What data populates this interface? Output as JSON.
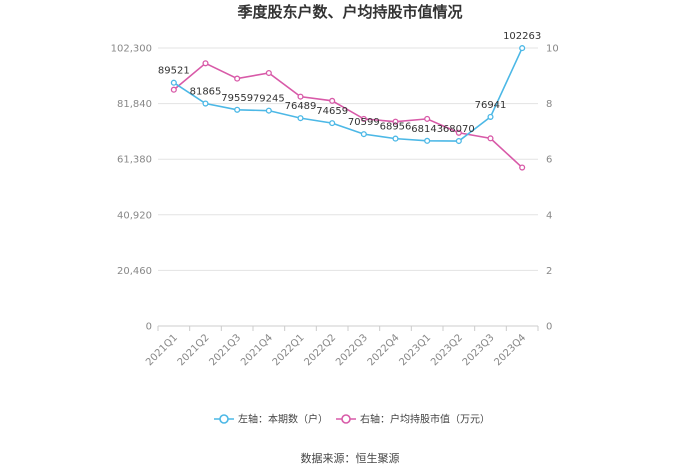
{
  "chart_data": {
    "type": "line",
    "title": "季度股东户数、户均持股市值情况",
    "categories": [
      "2021Q1",
      "2021Q2",
      "2021Q3",
      "2021Q4",
      "2022Q1",
      "2022Q2",
      "2022Q3",
      "2022Q4",
      "2023Q1",
      "2023Q2",
      "2023Q3",
      "2023Q4"
    ],
    "left_axis": {
      "min": 0,
      "max": 102300,
      "ticks": [
        0,
        20460,
        40920,
        61380,
        81840,
        102300
      ],
      "tick_labels": [
        "0",
        "20,460",
        "40,920",
        "61,380",
        "81,840",
        "102,300"
      ]
    },
    "right_axis": {
      "min": 0,
      "max": 10,
      "ticks": [
        0,
        2,
        4,
        6,
        8,
        10
      ],
      "tick_labels": [
        "0",
        "2",
        "4",
        "6",
        "8",
        "10"
      ]
    },
    "series": [
      {
        "name": "左轴：本期数（户）",
        "axis": "left",
        "color": "#4cb8e6",
        "values": [
          89521,
          81865,
          79559,
          79245,
          76489,
          74659,
          70599,
          68956,
          68143,
          68070,
          76941,
          102263
        ],
        "labels": [
          "89521",
          "81865",
          "79559",
          "79245",
          "76489",
          "74659",
          "70599",
          "68956",
          "68143",
          "68070",
          "76941",
          "102263"
        ]
      },
      {
        "name": "右轴：户均持股市值（万元）",
        "axis": "right",
        "color": "#d85aa8",
        "values": [
          8.5,
          9.45,
          8.9,
          9.1,
          8.25,
          8.1,
          7.45,
          7.35,
          7.45,
          6.95,
          6.75,
          5.7
        ]
      }
    ],
    "legend_position": "bottom-center",
    "grid": true
  },
  "footer": {
    "source": "数据来源：恒生聚源"
  }
}
